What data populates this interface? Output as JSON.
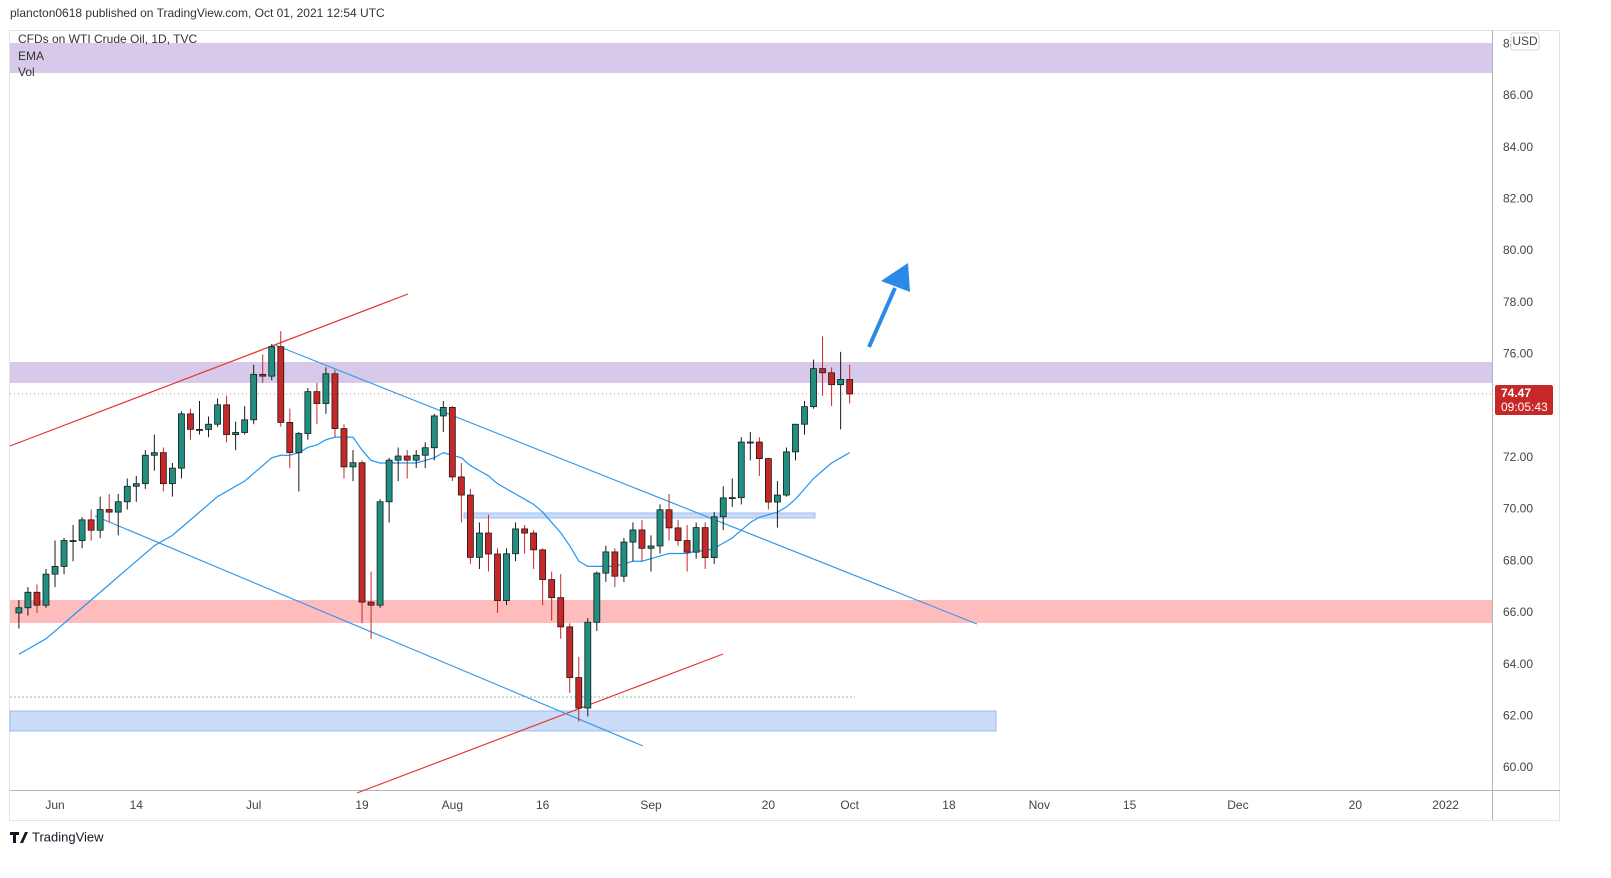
{
  "header": "plancton0618 published on TradingView.com, Oct 01, 2021 12:54 UTC",
  "footer": "TradingView",
  "chart_data": {
    "type": "candlestick",
    "symbol": "CFDs on WTI Crude Oil, 1D, TVC",
    "volume_label": "Vol",
    "currency": "USD",
    "last_price": 74.47,
    "countdown": "09:05:43",
    "up_color": "#1f8f80",
    "down_color": "#c62828",
    "grid": false,
    "ylim": [
      59.15,
      88.55
    ],
    "yticks": [
      {
        "value": 60,
        "label": "60.00"
      },
      {
        "value": 62,
        "label": "62.00"
      },
      {
        "value": 64,
        "label": "64.00"
      },
      {
        "value": 66,
        "label": "66.00"
      },
      {
        "value": 68,
        "label": "68.00"
      },
      {
        "value": 70,
        "label": "70.00"
      },
      {
        "value": 72,
        "label": "72.00"
      },
      {
        "value": 74,
        "label": "74.00"
      },
      {
        "value": 76,
        "label": "76.00"
      },
      {
        "value": 78,
        "label": "78.00"
      },
      {
        "value": 80,
        "label": "80.00"
      },
      {
        "value": 82,
        "label": "82.00"
      },
      {
        "value": 84,
        "label": "84.00"
      },
      {
        "value": 86,
        "label": "86.00"
      },
      {
        "value": 88,
        "label": "88.00"
      }
    ],
    "categories": [
      null,
      null,
      null,
      null,
      "Jun",
      null,
      null,
      null,
      null,
      null,
      null,
      null,
      null,
      "14",
      null,
      null,
      null,
      null,
      null,
      null,
      null,
      null,
      null,
      null,
      null,
      null,
      "Jul",
      null,
      null,
      null,
      null,
      null,
      null,
      null,
      null,
      null,
      null,
      null,
      "19",
      null,
      null,
      null,
      null,
      null,
      null,
      null,
      null,
      null,
      "Aug",
      null,
      null,
      null,
      null,
      null,
      null,
      null,
      null,
      null,
      "16",
      null,
      null,
      null,
      null,
      null,
      null,
      null,
      null,
      null,
      null,
      null,
      "Sep",
      null,
      null,
      null,
      null,
      null,
      null,
      null,
      null,
      null,
      null,
      null,
      null,
      "20",
      null,
      null,
      null,
      null,
      null,
      null,
      null,
      null,
      "Oct",
      null,
      null,
      null,
      null,
      null,
      null,
      null,
      null,
      null,
      null,
      "18",
      null,
      null,
      null,
      null,
      null,
      null,
      null,
      null,
      null,
      "Nov",
      null,
      null,
      null,
      null,
      null,
      null,
      null,
      null,
      null,
      "15",
      null,
      null,
      null,
      null,
      null,
      null,
      null,
      null,
      null,
      null,
      null,
      "Dec",
      null,
      null,
      null,
      null,
      null,
      null,
      null,
      null,
      null,
      null,
      null,
      null,
      "20",
      null,
      null,
      null,
      null,
      null,
      null,
      null,
      null,
      null,
      "2022",
      null,
      null,
      null,
      null
    ],
    "open": [
      66.0,
      66.2,
      66.8,
      66.3,
      67.5,
      67.8,
      68.8,
      68.8,
      69.6,
      69.2,
      70.0,
      69.9,
      70.3,
      70.9,
      71.0,
      72.1,
      72.2,
      71.0,
      71.6,
      73.7,
      73.1,
      73.1,
      73.3,
      74.05,
      72.9,
      72.98,
      73.47,
      75.23,
      75.16,
      76.3,
      73.37,
      72.2,
      72.94,
      74.56,
      74.1,
      75.25,
      73.13,
      71.65,
      71.81,
      66.42,
      66.3,
      70.3,
      71.91,
      72.07,
      71.91,
      72.1,
      72.39,
      73.62,
      73.95,
      71.26,
      70.56,
      68.15,
      69.09,
      68.28,
      66.48,
      68.29,
      69.25,
      69.09,
      68.44,
      67.29,
      66.59,
      65.46,
      63.5,
      62.32,
      65.64,
      67.54,
      68.36,
      67.42,
      68.74,
      69.21,
      68.5,
      68.59,
      69.99,
      69.29,
      68.8,
      68.35,
      69.3,
      68.14,
      69.72,
      70.45,
      70.46,
      72.61,
      72.61,
      71.97,
      70.29,
      70.56,
      72.23,
      73.3,
      73.98,
      75.45,
      75.29,
      74.83,
      75.03,
      null,
      null,
      null,
      null,
      null,
      null,
      null,
      null,
      null,
      null,
      null,
      null,
      null,
      null,
      null,
      null,
      null,
      null,
      null,
      null,
      null,
      null,
      null,
      null,
      null,
      null,
      null,
      null,
      null,
      null,
      null,
      null,
      null,
      null,
      null,
      null,
      null,
      null,
      null,
      null,
      null,
      null,
      null,
      null,
      null,
      null,
      null,
      null,
      null,
      null,
      null,
      null,
      null,
      null,
      null,
      null,
      null,
      null,
      null,
      null,
      null,
      null,
      null,
      null,
      null,
      null,
      null,
      null,
      null,
      null
    ],
    "high": [
      66.5,
      67.0,
      67.1,
      67.7,
      68.8,
      68.9,
      69.4,
      69.7,
      70.0,
      70.5,
      70.6,
      70.6,
      71.2,
      71.3,
      72.3,
      72.9,
      72.4,
      71.8,
      73.8,
      73.9,
      74.2,
      73.6,
      74.3,
      74.4,
      73.4,
      74.0,
      75.6,
      76.0,
      76.4,
      76.9,
      73.9,
      73.0,
      74.7,
      74.9,
      75.5,
      75.4,
      73.3,
      72.3,
      71.9,
      67.6,
      70.4,
      72.0,
      72.4,
      72.3,
      72.3,
      72.6,
      73.7,
      74.2,
      74.0,
      71.8,
      70.8,
      69.5,
      69.8,
      68.5,
      68.5,
      69.5,
      69.4,
      69.2,
      68.5,
      67.6,
      67.5,
      65.6,
      64.3,
      65.8,
      67.6,
      68.6,
      68.5,
      68.9,
      69.5,
      69.6,
      69.0,
      70.2,
      70.6,
      69.6,
      69.4,
      69.5,
      69.5,
      69.9,
      70.9,
      71.2,
      72.8,
      73.0,
      72.8,
      72.0,
      71.1,
      72.4,
      73.3,
      74.2,
      75.8,
      76.7,
      75.5,
      76.1,
      75.6,
      null,
      null,
      null,
      null,
      null,
      null,
      null,
      null,
      null,
      null,
      null,
      null,
      null,
      null,
      null,
      null,
      null,
      null,
      null,
      null,
      null,
      null,
      null,
      null,
      null,
      null,
      null,
      null,
      null,
      null,
      null,
      null,
      null,
      null,
      null,
      null,
      null,
      null,
      null,
      null,
      null,
      null,
      null,
      null,
      null,
      null,
      null,
      null,
      null,
      null,
      null,
      null,
      null,
      null,
      null,
      null,
      null,
      null,
      null,
      null,
      null,
      null,
      null,
      null,
      null,
      null,
      null,
      null,
      null,
      null
    ],
    "low": [
      65.4,
      65.9,
      66.0,
      66.2,
      67.0,
      67.5,
      68.0,
      68.5,
      68.8,
      68.9,
      69.5,
      69.0,
      70.0,
      70.3,
      70.8,
      71.5,
      70.7,
      70.5,
      71.2,
      72.7,
      72.9,
      72.8,
      73.2,
      72.6,
      72.3,
      72.9,
      73.3,
      74.9,
      75.0,
      73.2,
      71.6,
      70.7,
      72.7,
      73.3,
      73.7,
      72.8,
      71.2,
      71.1,
      65.6,
      65.0,
      66.2,
      69.5,
      71.1,
      71.2,
      71.6,
      71.6,
      71.9,
      73.0,
      71.1,
      69.5,
      67.9,
      67.7,
      67.6,
      66.0,
      66.3,
      68.0,
      68.3,
      67.7,
      66.3,
      65.7,
      65.0,
      62.9,
      61.8,
      62.0,
      65.3,
      67.2,
      67.0,
      67.2,
      68.0,
      68.0,
      67.6,
      68.3,
      68.8,
      68.6,
      67.6,
      68.1,
      67.7,
      67.9,
      69.2,
      70.1,
      70.2,
      71.9,
      71.3,
      70.0,
      69.3,
      70.5,
      71.9,
      72.9,
      73.9,
      74.4,
      74.0,
      73.1,
      74.1,
      null,
      null,
      null,
      null,
      null,
      null,
      null,
      null,
      null,
      null,
      null,
      null,
      null,
      null,
      null,
      null,
      null,
      null,
      null,
      null,
      null,
      null,
      null,
      null,
      null,
      null,
      null,
      null,
      null,
      null,
      null,
      null,
      null,
      null,
      null,
      null,
      null,
      null,
      null,
      null,
      null,
      null,
      null,
      null,
      null,
      null,
      null,
      null,
      null,
      null,
      null,
      null,
      null,
      null,
      null,
      null,
      null,
      null,
      null,
      null,
      null,
      null,
      null,
      null,
      null,
      null,
      null,
      null,
      null,
      null
    ],
    "close": [
      66.2,
      66.8,
      66.3,
      67.5,
      67.8,
      68.8,
      68.8,
      69.6,
      69.2,
      70.0,
      69.9,
      70.3,
      70.9,
      71.0,
      72.1,
      72.2,
      71.0,
      71.6,
      73.7,
      73.1,
      73.1,
      73.3,
      74.05,
      72.9,
      72.98,
      73.47,
      75.23,
      75.16,
      76.3,
      73.37,
      72.2,
      72.94,
      74.56,
      74.1,
      75.25,
      73.13,
      71.65,
      71.81,
      66.42,
      66.3,
      70.3,
      71.91,
      72.07,
      71.91,
      72.1,
      72.39,
      73.62,
      73.95,
      71.26,
      70.56,
      68.15,
      69.09,
      68.28,
      66.48,
      68.29,
      69.25,
      69.09,
      68.44,
      67.29,
      66.59,
      65.46,
      63.5,
      62.32,
      65.64,
      67.54,
      68.36,
      67.42,
      68.74,
      69.21,
      68.5,
      68.59,
      69.99,
      69.29,
      68.8,
      68.35,
      69.3,
      68.14,
      69.72,
      70.45,
      70.46,
      72.61,
      72.61,
      71.97,
      70.29,
      70.56,
      72.23,
      73.3,
      73.98,
      75.45,
      75.29,
      74.83,
      75.03,
      74.47,
      null,
      null,
      null,
      null,
      null,
      null,
      null,
      null,
      null,
      null,
      null,
      null,
      null,
      null,
      null,
      null,
      null,
      null,
      null,
      null,
      null,
      null,
      null,
      null,
      null,
      null,
      null,
      null,
      null,
      null,
      null,
      null,
      null,
      null,
      null,
      null,
      null,
      null,
      null,
      null,
      null,
      null,
      null,
      null,
      null,
      null,
      null,
      null,
      null,
      null,
      null,
      null,
      null,
      null,
      null,
      null,
      null,
      null,
      null,
      null,
      null,
      null,
      null,
      null,
      null,
      null,
      null,
      null,
      null,
      null
    ],
    "series": [
      {
        "name": "EMA",
        "color": "#2196f3",
        "values": [
          64.4,
          64.6,
          64.8,
          65.0,
          65.3,
          65.6,
          65.9,
          66.2,
          66.5,
          66.8,
          67.1,
          67.4,
          67.7,
          68.0,
          68.3,
          68.6,
          68.8,
          69.0,
          69.3,
          69.6,
          69.9,
          70.2,
          70.5,
          70.7,
          70.9,
          71.1,
          71.4,
          71.7,
          72.0,
          72.1,
          72.1,
          72.2,
          72.4,
          72.5,
          72.7,
          72.8,
          72.8,
          72.8,
          72.3,
          71.9,
          71.8,
          71.8,
          71.8,
          71.8,
          71.8,
          71.9,
          72.0,
          72.2,
          72.1,
          72.0,
          71.7,
          71.5,
          71.3,
          71.0,
          70.8,
          70.6,
          70.4,
          70.2,
          69.9,
          69.5,
          69.1,
          68.6,
          68.0,
          67.8,
          67.8,
          67.8,
          67.8,
          67.9,
          68.0,
          68.0,
          68.1,
          68.2,
          68.3,
          68.3,
          68.3,
          68.4,
          68.4,
          68.5,
          68.7,
          68.9,
          69.2,
          69.5,
          69.7,
          69.8,
          69.9,
          70.1,
          70.4,
          70.8,
          71.2,
          71.5,
          71.8,
          72.0,
          72.2,
          null,
          null,
          null,
          null,
          null,
          null,
          null,
          null,
          null,
          null,
          null,
          null,
          null,
          null,
          null,
          null,
          null,
          null,
          null,
          null,
          null,
          null,
          null,
          null,
          null,
          null,
          null,
          null,
          null,
          null,
          null,
          null,
          null,
          null,
          null,
          null,
          null,
          null,
          null,
          null,
          null,
          null,
          null,
          null,
          null,
          null,
          null,
          null,
          null,
          null,
          null,
          null,
          null,
          null,
          null,
          null,
          null,
          null,
          null,
          null,
          null,
          null,
          null,
          null,
          null,
          null,
          null,
          null,
          null,
          null
        ]
      }
    ]
  }
}
